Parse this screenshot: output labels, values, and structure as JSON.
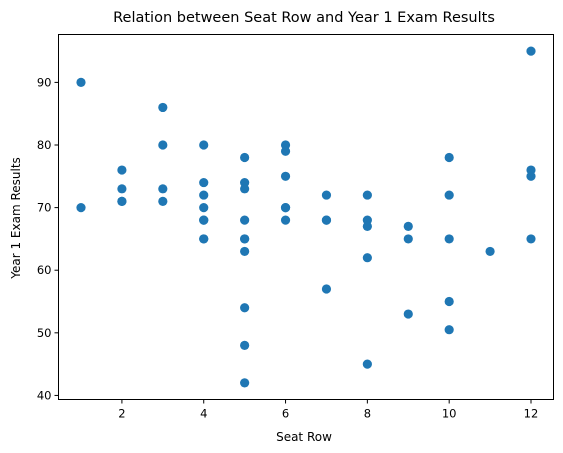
{
  "chart_data": {
    "type": "scatter",
    "title": "Relation between Seat Row and Year 1 Exam Results",
    "xlabel": "Seat Row",
    "ylabel": "Year 1 Exam Results",
    "xlim": [
      0.45,
      12.55
    ],
    "ylim": [
      39.35,
      97.65
    ],
    "xticks": [
      2,
      4,
      6,
      8,
      10,
      12
    ],
    "yticks": [
      40,
      50,
      60,
      70,
      80,
      90
    ],
    "grid": false,
    "marker_color": "#1f77b4",
    "series": [
      {
        "points": [
          [
            1,
            90
          ],
          [
            1,
            70
          ],
          [
            2,
            76
          ],
          [
            2,
            73
          ],
          [
            2,
            71
          ],
          [
            2,
            71
          ],
          [
            3,
            86
          ],
          [
            3,
            80
          ],
          [
            3,
            73
          ],
          [
            3,
            71
          ],
          [
            4,
            80
          ],
          [
            4,
            74
          ],
          [
            4,
            72
          ],
          [
            4,
            70
          ],
          [
            4,
            68
          ],
          [
            4,
            68
          ],
          [
            4,
            65
          ],
          [
            4,
            65
          ],
          [
            5,
            78
          ],
          [
            5,
            74
          ],
          [
            5,
            73
          ],
          [
            5,
            68
          ],
          [
            5,
            65
          ],
          [
            5,
            65
          ],
          [
            5,
            63
          ],
          [
            5,
            54
          ],
          [
            5,
            48
          ],
          [
            5,
            42
          ],
          [
            6,
            80
          ],
          [
            6,
            79
          ],
          [
            6,
            75
          ],
          [
            6,
            70
          ],
          [
            6,
            70
          ],
          [
            6,
            68
          ],
          [
            7,
            72
          ],
          [
            7,
            68
          ],
          [
            7,
            68
          ],
          [
            7,
            57
          ],
          [
            8,
            72
          ],
          [
            8,
            68
          ],
          [
            8,
            67
          ],
          [
            8,
            62
          ],
          [
            8,
            45
          ],
          [
            9,
            67
          ],
          [
            9,
            65
          ],
          [
            9,
            53
          ],
          [
            10,
            78
          ],
          [
            10,
            72
          ],
          [
            10,
            65
          ],
          [
            10,
            55
          ],
          [
            10,
            50.5
          ],
          [
            11,
            63
          ],
          [
            12,
            95
          ],
          [
            12,
            76
          ],
          [
            12,
            75
          ],
          [
            12,
            65
          ]
        ]
      }
    ]
  }
}
